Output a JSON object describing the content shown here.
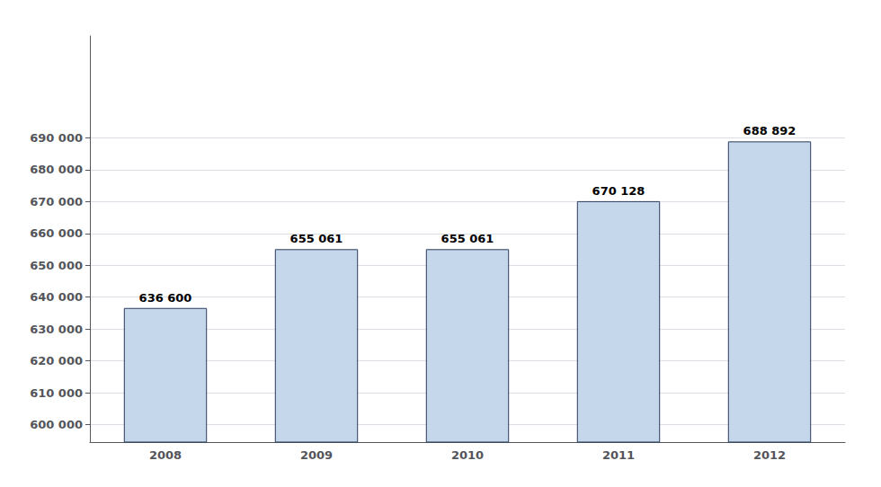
{
  "chart_data": {
    "type": "bar",
    "categories": [
      "2008",
      "2009",
      "2010",
      "2011",
      "2012"
    ],
    "values": [
      636600,
      655061,
      655061,
      670128,
      688892
    ],
    "value_labels": [
      "636 600",
      "655 061",
      "655 061",
      "670 128",
      "688 892"
    ],
    "data_labels": true,
    "color": "#c5d8eb",
    "ylim": [
      594500,
      722000
    ],
    "yticks": [
      {
        "value": 600000,
        "label": "600 000"
      },
      {
        "value": 610000,
        "label": "610 000"
      },
      {
        "value": 620000,
        "label": "620 000"
      },
      {
        "value": 630000,
        "label": "630 000"
      },
      {
        "value": 640000,
        "label": "640 000"
      },
      {
        "value": 650000,
        "label": "650 000"
      },
      {
        "value": 660000,
        "label": "660 000"
      },
      {
        "value": 670000,
        "label": "670 000"
      },
      {
        "value": 680000,
        "label": "680 000"
      },
      {
        "value": 690000,
        "label": "690 000"
      }
    ],
    "grid": true
  }
}
